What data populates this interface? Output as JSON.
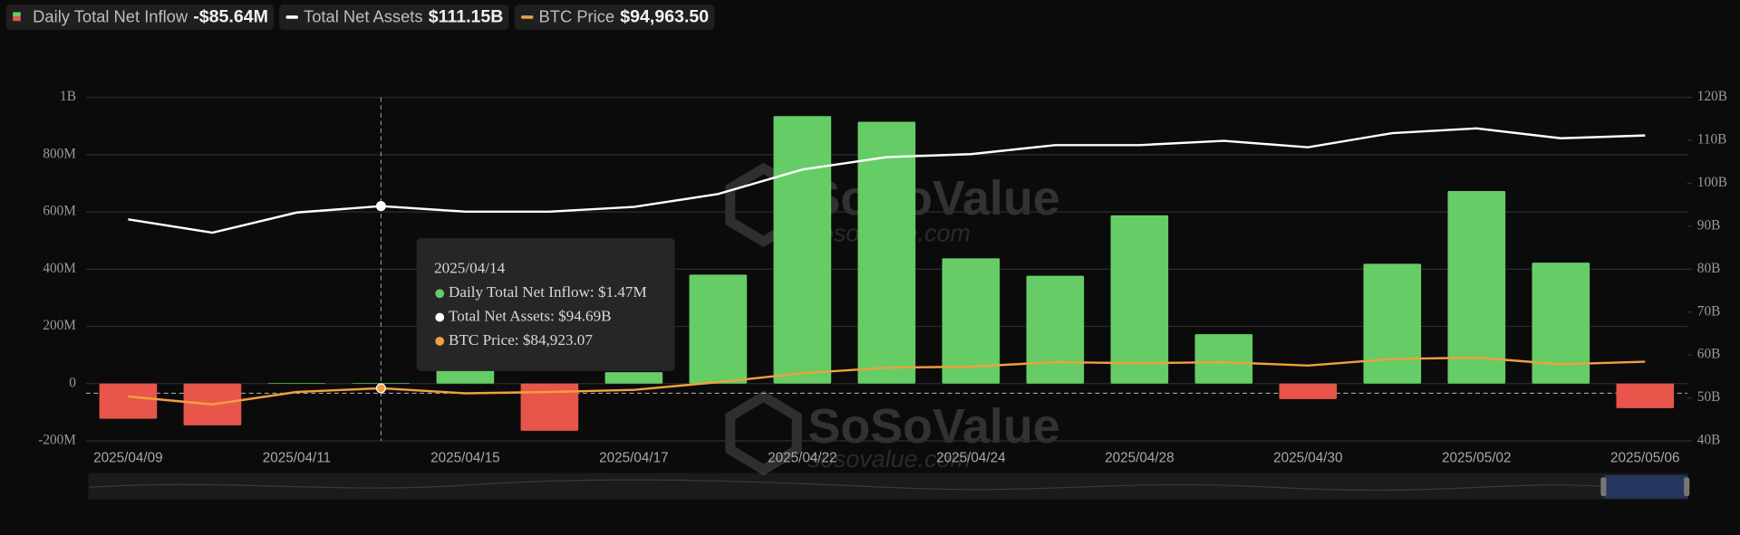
{
  "chart_data": {
    "type": "bar-line",
    "categories": [
      "2025/04/09",
      null,
      "2025/04/11",
      null,
      "2025/04/15",
      null,
      "2025/04/17",
      null,
      "2025/04/22",
      null,
      "2025/04/24",
      null,
      "2025/04/28",
      null,
      "2025/04/30",
      null,
      "2025/05/02",
      null,
      "2025/05/06"
    ],
    "series": [
      {
        "name": "Daily Total Net Inflow",
        "type": "bar",
        "color": "#66cc66",
        "negative_color": "#e8554a",
        "current_label": "-$85.64M",
        "values": [
          -123,
          -146,
          2,
          1.47,
          60,
          -165,
          40,
          381,
          935,
          915,
          438,
          377,
          588,
          173,
          -54,
          419,
          673,
          423,
          -85.64
        ]
      },
      {
        "name": "Total Net Assets",
        "type": "line",
        "axis": "y2",
        "color": "#ffffff",
        "current_label": "$111.15B",
        "values": [
          91.6,
          88.5,
          93.2,
          94.69,
          93.4,
          93.4,
          94.5,
          97.5,
          103.2,
          106.1,
          106.8,
          108.9,
          108.9,
          109.9,
          108.4,
          111.7,
          112.8,
          110.5,
          111.15
        ]
      },
      {
        "name": "BTC Price",
        "type": "line",
        "axis": "y3",
        "color": "#f0a040",
        "current_label": "$94,963.50",
        "values": [
          81800,
          78800,
          83500,
          84923.07,
          83000,
          83500,
          84300,
          87200,
          90600,
          92700,
          93100,
          94800,
          94400,
          94800,
          93500,
          96000,
          96500,
          94000,
          94963.5
        ]
      }
    ],
    "ylim": [
      -200,
      1000
    ],
    "yticks": [
      {
        "value": -200,
        "label": "-200M"
      },
      0,
      {
        "value": 200,
        "label": "200M"
      },
      {
        "value": 400,
        "label": "400M"
      },
      {
        "value": 600,
        "label": "600M"
      },
      {
        "value": 800,
        "label": "800M"
      },
      {
        "value": 1000,
        "label": "1B"
      }
    ],
    "y2lim": [
      40,
      120
    ],
    "y2ticks": [
      {
        "value": 40,
        "label": "40B"
      },
      {
        "value": 50,
        "label": "50B"
      },
      {
        "value": 60,
        "label": "60B"
      },
      {
        "value": 70,
        "label": "70B"
      },
      {
        "value": 80,
        "label": "80B"
      },
      {
        "value": 90,
        "label": "90B"
      },
      {
        "value": 100,
        "label": "100B"
      },
      {
        "value": 110,
        "label": "110B"
      },
      {
        "value": 120,
        "label": "120B"
      }
    ],
    "y3lim": [
      65000,
      195000
    ],
    "grid": true,
    "tooltip": {
      "title": "2025/04/14",
      "lines": [
        "Daily Total Net Inflow: $1.47M",
        "Total Net Assets: $94.69B",
        "BTC Price: $84,923.07"
      ]
    },
    "watermark": {
      "brand": "SoSoValue",
      "site": "sosovalue.com"
    }
  }
}
